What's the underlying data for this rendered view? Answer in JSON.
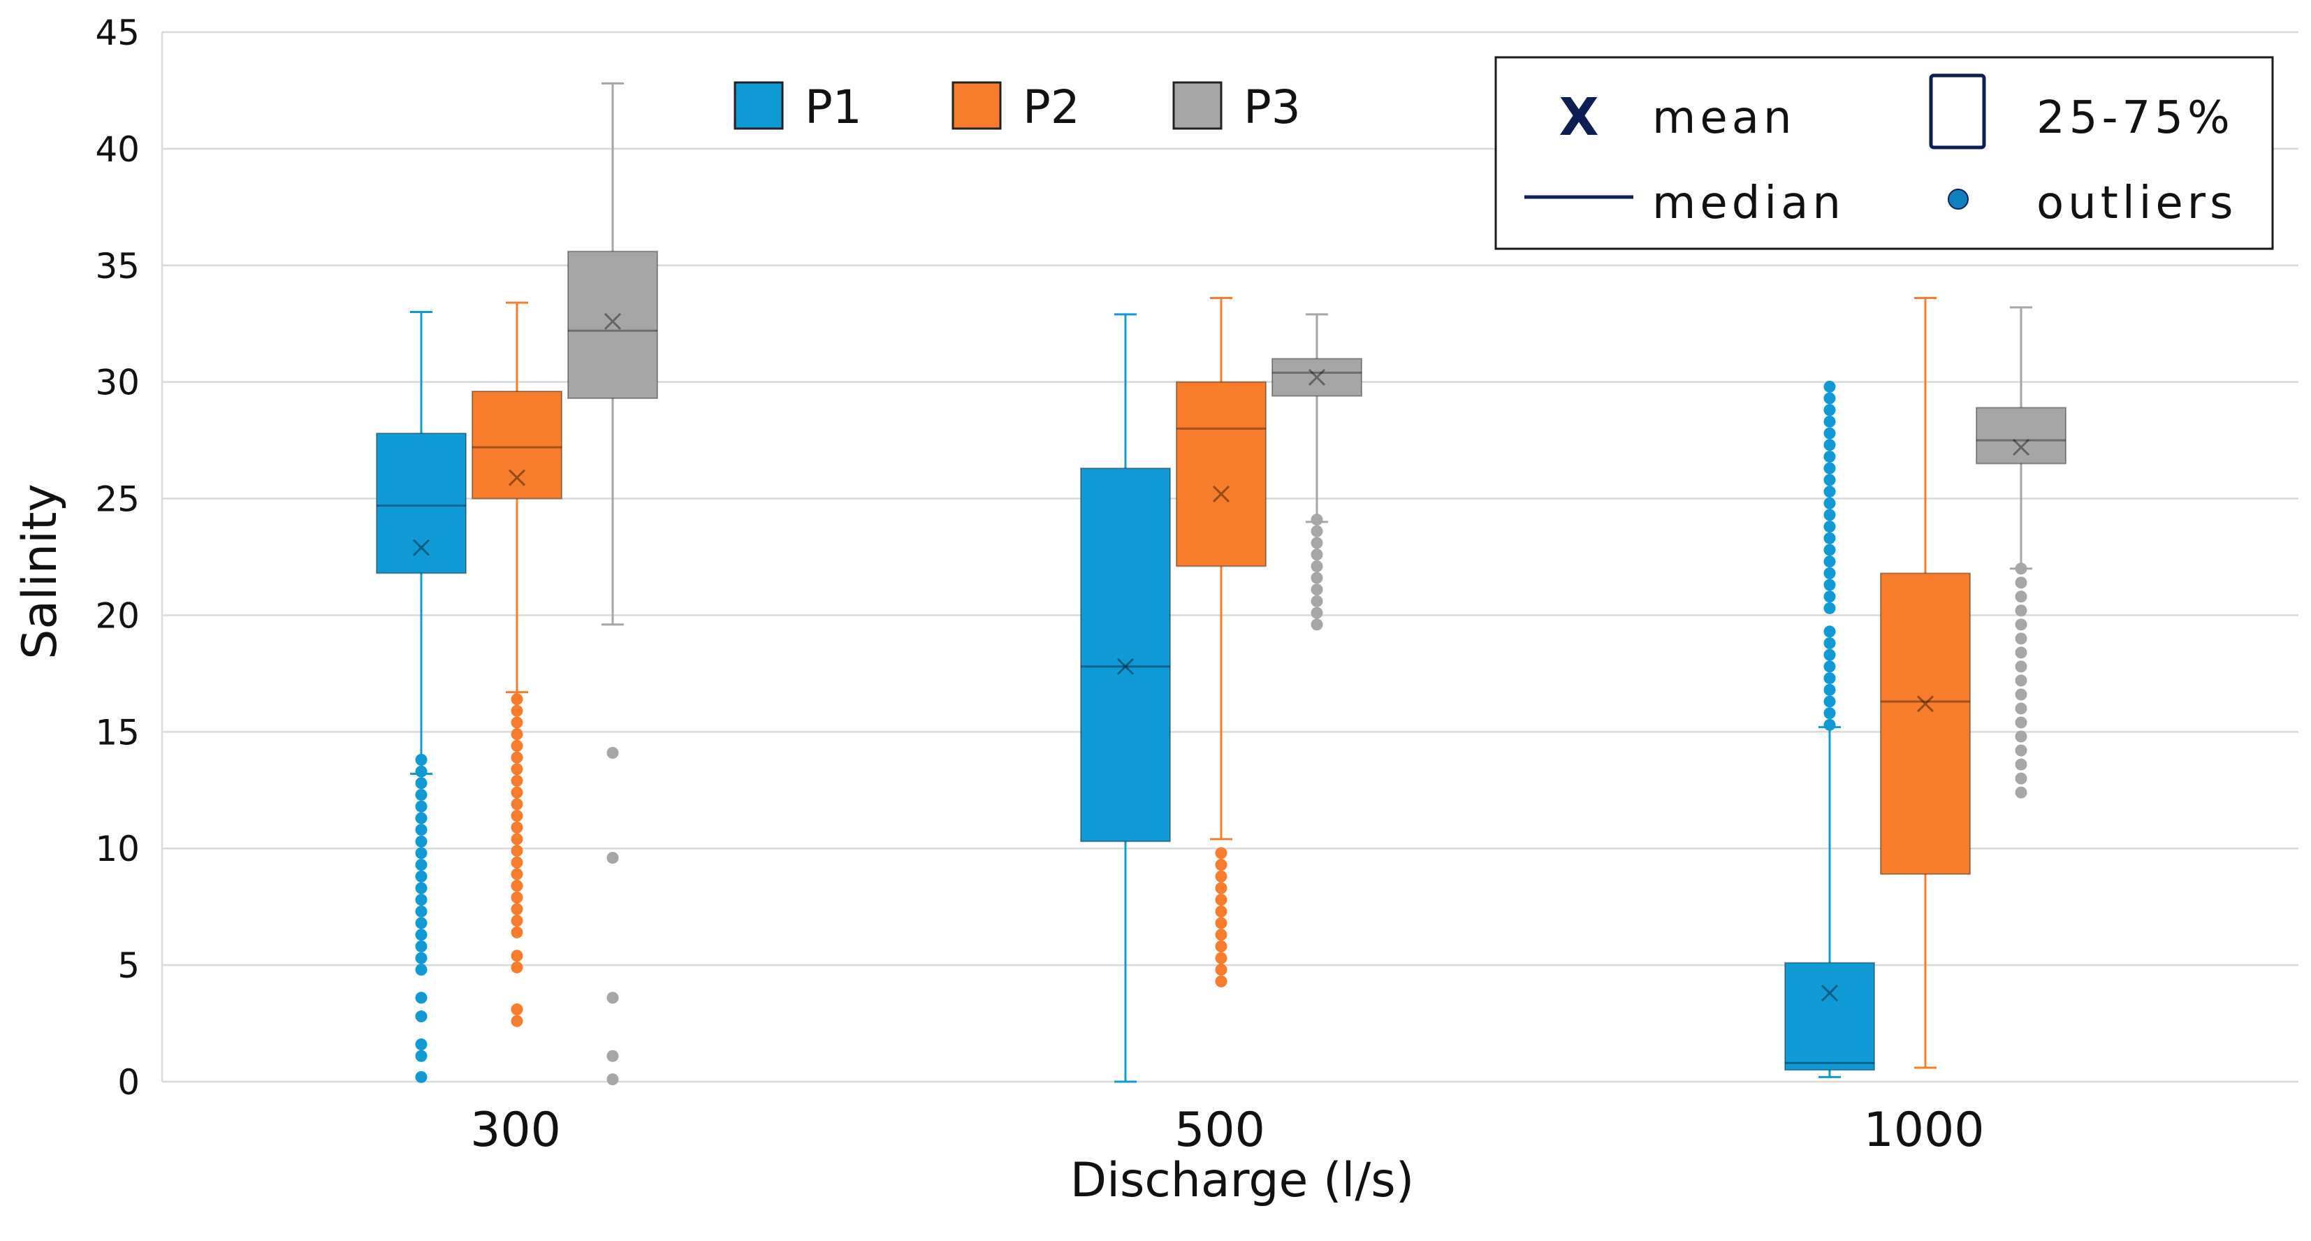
{
  "chart_data": {
    "type": "box",
    "title": "",
    "xlabel": "Discharge (l/s)",
    "ylabel": "Salinity",
    "ylim": [
      0,
      45
    ],
    "yticks": [
      "0",
      "5",
      "10",
      "15",
      "20",
      "25",
      "30",
      "35",
      "40",
      "45"
    ],
    "categories": [
      "300",
      "500",
      "1000"
    ],
    "grid": "horizontal",
    "legend_position": "top",
    "series": [
      {
        "name": "P1",
        "color": "#0f9ad6",
        "boxes": [
          {
            "category": "300",
            "whisker_low": 13.2,
            "q1": 21.8,
            "median": 24.7,
            "q3": 27.8,
            "whisker_high": 33.0,
            "mean": 22.9,
            "outliers": [
              0.2,
              1.1,
              1.6,
              2.8,
              3.6,
              4.8,
              5.3,
              5.8,
              6.3,
              6.8,
              7.3,
              7.8,
              8.3,
              8.8,
              9.3,
              9.8,
              10.3,
              10.8,
              11.3,
              11.8,
              12.3,
              12.8,
              13.3,
              13.8
            ]
          },
          {
            "category": "500",
            "whisker_low": 0.0,
            "q1": 10.3,
            "median": 17.8,
            "q3": 26.3,
            "whisker_high": 32.9,
            "mean": 17.8,
            "outliers": []
          },
          {
            "category": "1000",
            "whisker_low": 0.2,
            "q1": 0.5,
            "median": 0.8,
            "q3": 5.1,
            "whisker_high": 15.2,
            "mean": 3.8,
            "outliers": [
              15.3,
              15.8,
              16.3,
              16.8,
              17.3,
              17.8,
              18.3,
              18.8,
              19.3,
              20.3,
              20.8,
              21.3,
              21.8,
              22.3,
              22.8,
              23.3,
              23.8,
              24.3,
              24.8,
              25.3,
              25.8,
              26.3,
              26.8,
              27.3,
              27.8,
              28.3,
              28.8,
              29.3,
              29.8
            ]
          }
        ]
      },
      {
        "name": "P2",
        "color": "#f77d2d",
        "boxes": [
          {
            "category": "300",
            "whisker_low": 16.7,
            "q1": 25.0,
            "median": 27.2,
            "q3": 29.6,
            "whisker_high": 33.4,
            "mean": 25.9,
            "outliers": [
              2.6,
              3.1,
              4.9,
              5.4,
              6.4,
              6.9,
              7.4,
              7.9,
              8.4,
              8.9,
              9.4,
              9.9,
              10.4,
              10.9,
              11.4,
              11.9,
              12.4,
              12.9,
              13.4,
              13.9,
              14.4,
              14.9,
              15.4,
              15.9,
              16.4
            ]
          },
          {
            "category": "500",
            "whisker_low": 10.4,
            "q1": 22.1,
            "median": 28.0,
            "q3": 30.0,
            "whisker_high": 33.6,
            "mean": 25.2,
            "outliers": [
              4.3,
              4.8,
              5.3,
              5.8,
              6.3,
              6.8,
              7.3,
              7.8,
              8.3,
              8.8,
              9.3,
              9.8
            ]
          },
          {
            "category": "1000",
            "whisker_low": 0.6,
            "q1": 8.9,
            "median": 16.3,
            "q3": 21.8,
            "whisker_high": 33.6,
            "mean": 16.2,
            "outliers": []
          }
        ]
      },
      {
        "name": "P3",
        "color": "#a6a6a6",
        "boxes": [
          {
            "category": "300",
            "whisker_low": 19.6,
            "q1": 29.3,
            "median": 32.2,
            "q3": 35.6,
            "whisker_high": 42.8,
            "mean": 32.6,
            "outliers": [
              0.1,
              1.1,
              3.6,
              9.6,
              14.1
            ]
          },
          {
            "category": "500",
            "whisker_low": 24.0,
            "q1": 29.4,
            "median": 30.4,
            "q3": 31.0,
            "whisker_high": 32.9,
            "mean": 30.2,
            "outliers": [
              19.6,
              20.1,
              20.6,
              21.1,
              21.6,
              22.1,
              22.6,
              23.1,
              23.6,
              24.1
            ]
          },
          {
            "category": "1000",
            "whisker_low": 22.0,
            "q1": 26.5,
            "median": 27.5,
            "q3": 28.9,
            "whisker_high": 33.2,
            "mean": 27.2,
            "outliers": [
              12.4,
              13.0,
              13.6,
              14.2,
              14.8,
              15.4,
              16.0,
              16.6,
              17.2,
              17.8,
              18.4,
              19.0,
              19.6,
              20.2,
              20.8,
              21.4,
              22.0
            ]
          }
        ]
      }
    ],
    "legend_key": {
      "mean": "mean",
      "median": "median",
      "box": "25-75%",
      "outliers": "outliers",
      "border_color": "#0c1f55"
    }
  }
}
